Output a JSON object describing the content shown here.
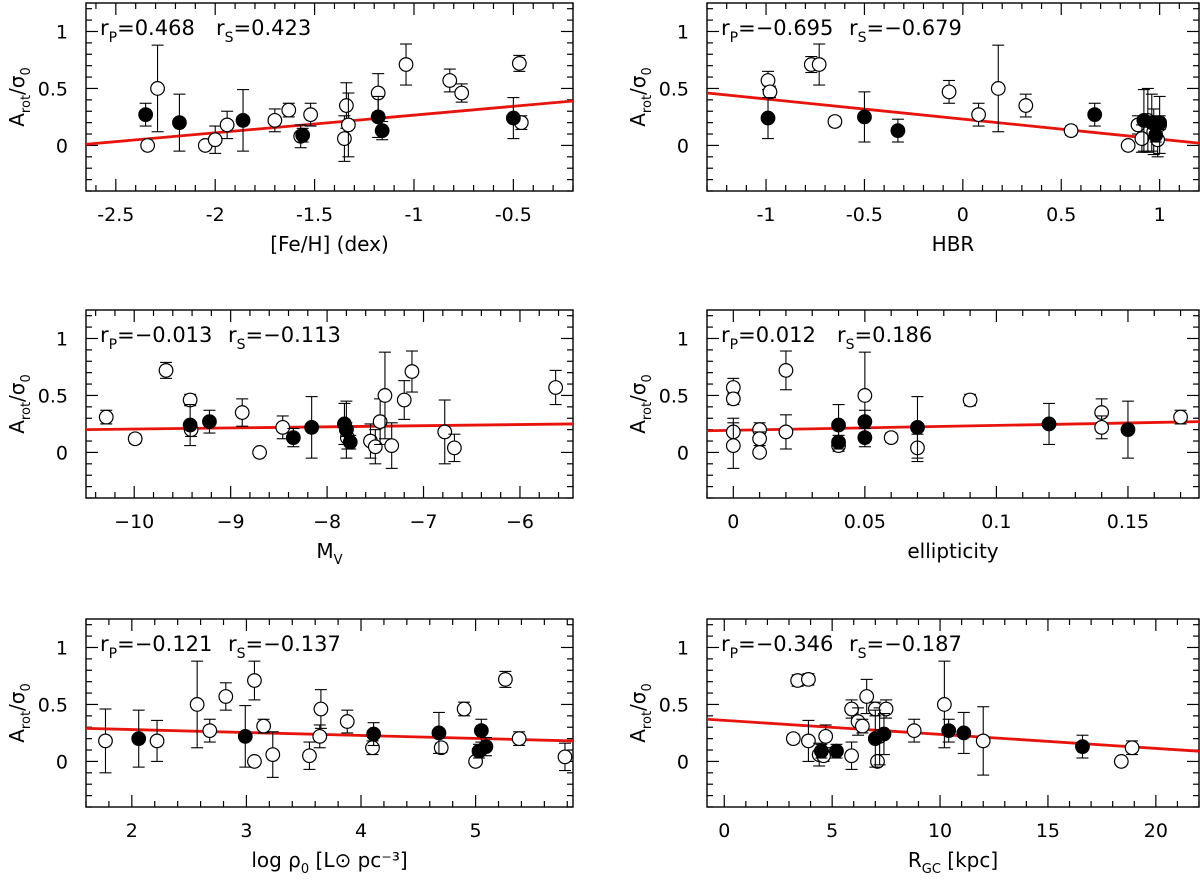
{
  "chart_data": [
    {
      "type": "scatter",
      "xlabel": "[Fe/H] (dex)",
      "ylabel": "A_rot/σ_0",
      "xlim": [
        -2.65,
        -0.2
      ],
      "ylim": [
        -0.4,
        1.25
      ],
      "xticks": [
        -2.5,
        -2,
        -1.5,
        -1,
        -0.5
      ],
      "xtick_labels": [
        "-2.5",
        "-2",
        "-1.5",
        "-1",
        "-0.5"
      ],
      "yticks": [
        0,
        0.5,
        1
      ],
      "ytick_labels": [
        "0",
        "0.5",
        "1"
      ],
      "rp_label": "rP=0.468",
      "rs_label": "rS=0.423",
      "fit_line": {
        "x": [
          -2.65,
          -0.2
        ],
        "y": [
          0.01,
          0.39
        ]
      },
      "open_points": [
        {
          "x": -2.34,
          "y": 0.0,
          "err": 0.02
        },
        {
          "x": -2.29,
          "y": 0.5,
          "err": 0.38
        },
        {
          "x": -2.05,
          "y": 0.0,
          "err": 0.02
        },
        {
          "x": -2.0,
          "y": 0.05,
          "err": 0.12
        },
        {
          "x": -1.94,
          "y": 0.18,
          "err": 0.12
        },
        {
          "x": -1.7,
          "y": 0.22,
          "err": 0.1
        },
        {
          "x": -1.63,
          "y": 0.31,
          "err": 0.06
        },
        {
          "x": -1.57,
          "y": 0.08,
          "err": 0.1
        },
        {
          "x": -1.52,
          "y": 0.27,
          "err": 0.1
        },
        {
          "x": -1.35,
          "y": 0.06,
          "err": 0.2
        },
        {
          "x": -1.34,
          "y": 0.35,
          "err": 0.2
        },
        {
          "x": -1.33,
          "y": 0.18,
          "err": 0.28
        },
        {
          "x": -1.18,
          "y": 0.46,
          "err": 0.17
        },
        {
          "x": -1.04,
          "y": 0.71,
          "err": 0.18
        },
        {
          "x": -0.82,
          "y": 0.57,
          "err": 0.1
        },
        {
          "x": -0.76,
          "y": 0.46,
          "err": 0.08
        },
        {
          "x": -0.47,
          "y": 0.72,
          "err": 0.07
        },
        {
          "x": -0.46,
          "y": 0.2,
          "err": 0.06
        }
      ],
      "filled_points": [
        {
          "x": -2.35,
          "y": 0.27,
          "err": 0.1
        },
        {
          "x": -2.18,
          "y": 0.2,
          "err": 0.25
        },
        {
          "x": -1.86,
          "y": 0.22,
          "err": 0.27
        },
        {
          "x": -1.56,
          "y": 0.09,
          "err": 0.06
        },
        {
          "x": -1.18,
          "y": 0.25,
          "err": 0.18
        },
        {
          "x": -1.16,
          "y": 0.13,
          "err": 0.08
        },
        {
          "x": -0.5,
          "y": 0.24,
          "err": 0.18
        }
      ]
    },
    {
      "type": "scatter",
      "xlabel": "HBR",
      "ylabel": "A_rot/σ_0",
      "xlim": [
        -1.3,
        1.2
      ],
      "ylim": [
        -0.4,
        1.25
      ],
      "xticks": [
        -1,
        -0.5,
        0,
        0.5,
        1
      ],
      "xtick_labels": [
        "-1",
        "-0.5",
        "0",
        "0.5",
        "1"
      ],
      "yticks": [
        0,
        0.5,
        1
      ],
      "ytick_labels": [
        "0",
        "0.5",
        "1"
      ],
      "rp_label": "rP=−0.695",
      "rs_label": "rS=−0.679",
      "fit_line": {
        "x": [
          -1.3,
          1.2
        ],
        "y": [
          0.46,
          0.02
        ]
      },
      "open_points": [
        {
          "x": -0.99,
          "y": 0.57,
          "err": 0.08
        },
        {
          "x": -0.98,
          "y": 0.47,
          "err": 0.05
        },
        {
          "x": -0.77,
          "y": 0.71,
          "err": 0.07
        },
        {
          "x": -0.73,
          "y": 0.71,
          "err": 0.18
        },
        {
          "x": -0.65,
          "y": 0.21,
          "err": 0.04
        },
        {
          "x": -0.07,
          "y": 0.47,
          "err": 0.1
        },
        {
          "x": 0.08,
          "y": 0.27,
          "err": 0.1
        },
        {
          "x": 0.18,
          "y": 0.5,
          "err": 0.38
        },
        {
          "x": 0.32,
          "y": 0.35,
          "err": 0.1
        },
        {
          "x": 0.55,
          "y": 0.13,
          "err": 0.04
        },
        {
          "x": 0.84,
          "y": 0.0,
          "err": 0.02
        },
        {
          "x": 0.89,
          "y": 0.18,
          "err": 0.08
        },
        {
          "x": 0.91,
          "y": 0.06,
          "err": 0.12
        },
        {
          "x": 0.94,
          "y": 0.22,
          "err": 0.28
        },
        {
          "x": 0.97,
          "y": 0.12,
          "err": 0.2
        },
        {
          "x": 0.99,
          "y": 0.05,
          "err": 0.15
        },
        {
          "x": 1.0,
          "y": 0.18,
          "err": 0.25
        }
      ],
      "filled_points": [
        {
          "x": -0.99,
          "y": 0.24,
          "err": 0.18
        },
        {
          "x": -0.5,
          "y": 0.25,
          "err": 0.22
        },
        {
          "x": -0.33,
          "y": 0.13,
          "err": 0.1
        },
        {
          "x": 0.67,
          "y": 0.27,
          "err": 0.1
        },
        {
          "x": 0.92,
          "y": 0.22,
          "err": 0.27
        },
        {
          "x": 0.96,
          "y": 0.2,
          "err": 0.25
        },
        {
          "x": 0.98,
          "y": 0.09,
          "err": 0.06
        },
        {
          "x": 1.0,
          "y": 0.2,
          "err": 0.06
        }
      ]
    },
    {
      "type": "scatter",
      "xlabel": "M_V",
      "ylabel": "A_rot/σ_0",
      "xlim": [
        -10.5,
        -5.45
      ],
      "ylim": [
        -0.4,
        1.25
      ],
      "xticks": [
        -10,
        -9,
        -8,
        -7,
        -6
      ],
      "xtick_labels": [
        "−10",
        "−9",
        "−8",
        "−7",
        "−6"
      ],
      "yticks": [
        0,
        0.5,
        1
      ],
      "ytick_labels": [
        "0",
        "0.5",
        "1"
      ],
      "rp_label": "rP=−0.013",
      "rs_label": "rS=−0.113",
      "fit_line": {
        "x": [
          -10.5,
          -5.45
        ],
        "y": [
          0.2,
          0.25
        ]
      },
      "open_points": [
        {
          "x": -10.29,
          "y": 0.31,
          "err": 0.06
        },
        {
          "x": -9.99,
          "y": 0.12,
          "err": 0.04
        },
        {
          "x": -9.67,
          "y": 0.72,
          "err": 0.07
        },
        {
          "x": -9.42,
          "y": 0.46,
          "err": 0.05
        },
        {
          "x": -9.41,
          "y": 0.2,
          "err": 0.06
        },
        {
          "x": -8.88,
          "y": 0.35,
          "err": 0.12
        },
        {
          "x": -8.7,
          "y": 0.0,
          "err": 0.02
        },
        {
          "x": -8.46,
          "y": 0.22,
          "err": 0.1
        },
        {
          "x": -7.8,
          "y": 0.2,
          "err": 0.25
        },
        {
          "x": -7.79,
          "y": 0.13,
          "err": 0.1
        },
        {
          "x": -7.55,
          "y": 0.1,
          "err": 0.15
        },
        {
          "x": -7.5,
          "y": 0.05,
          "err": 0.15
        },
        {
          "x": -7.45,
          "y": 0.27,
          "err": 0.2
        },
        {
          "x": -7.4,
          "y": 0.5,
          "err": 0.38
        },
        {
          "x": -7.33,
          "y": 0.06,
          "err": 0.2
        },
        {
          "x": -7.2,
          "y": 0.46,
          "err": 0.17
        },
        {
          "x": -7.12,
          "y": 0.71,
          "err": 0.18
        },
        {
          "x": -6.78,
          "y": 0.18,
          "err": 0.28
        },
        {
          "x": -6.68,
          "y": 0.04,
          "err": 0.12
        },
        {
          "x": -5.63,
          "y": 0.57,
          "err": 0.15
        }
      ],
      "filled_points": [
        {
          "x": -9.42,
          "y": 0.24,
          "err": 0.18
        },
        {
          "x": -9.22,
          "y": 0.27,
          "err": 0.1
        },
        {
          "x": -8.35,
          "y": 0.13,
          "err": 0.08
        },
        {
          "x": -8.16,
          "y": 0.22,
          "err": 0.27
        },
        {
          "x": -7.82,
          "y": 0.25,
          "err": 0.18
        },
        {
          "x": -7.8,
          "y": 0.2,
          "err": 0.06
        },
        {
          "x": -7.76,
          "y": 0.09,
          "err": 0.06
        }
      ]
    },
    {
      "type": "scatter",
      "xlabel": "ellipticity",
      "ylabel": "A_rot/σ_0",
      "xlim": [
        -0.01,
        0.177
      ],
      "ylim": [
        -0.4,
        1.25
      ],
      "xticks": [
        0,
        0.05,
        0.1,
        0.15
      ],
      "xtick_labels": [
        "0",
        "0.05",
        "0.1",
        "0.15"
      ],
      "yticks": [
        0,
        0.5,
        1
      ],
      "ytick_labels": [
        "0",
        "0.5",
        "1"
      ],
      "rp_label": "rP=0.012",
      "rs_label": "rS=0.186",
      "fit_line": {
        "x": [
          -0.01,
          0.177
        ],
        "y": [
          0.19,
          0.27
        ]
      },
      "open_points": [
        {
          "x": 0.0,
          "y": 0.57,
          "err": 0.08
        },
        {
          "x": 0.0,
          "y": 0.47,
          "err": 0.05
        },
        {
          "x": 0.0,
          "y": 0.18,
          "err": 0.12
        },
        {
          "x": 0.0,
          "y": 0.06,
          "err": 0.2
        },
        {
          "x": 0.01,
          "y": 0.2,
          "err": 0.06
        },
        {
          "x": 0.01,
          "y": 0.12,
          "err": 0.06
        },
        {
          "x": 0.01,
          "y": 0.0,
          "err": 0.02
        },
        {
          "x": 0.02,
          "y": 0.72,
          "err": 0.17
        },
        {
          "x": 0.02,
          "y": 0.18,
          "err": 0.15
        },
        {
          "x": 0.04,
          "y": 0.06,
          "err": 0.05
        },
        {
          "x": 0.05,
          "y": 0.5,
          "err": 0.38
        },
        {
          "x": 0.06,
          "y": 0.13,
          "err": 0.04
        },
        {
          "x": 0.07,
          "y": 0.04,
          "err": 0.12
        },
        {
          "x": 0.09,
          "y": 0.46,
          "err": 0.05
        },
        {
          "x": 0.14,
          "y": 0.35,
          "err": 0.12
        },
        {
          "x": 0.14,
          "y": 0.22,
          "err": 0.1
        },
        {
          "x": 0.17,
          "y": 0.31,
          "err": 0.06
        }
      ],
      "filled_points": [
        {
          "x": 0.04,
          "y": 0.24,
          "err": 0.18
        },
        {
          "x": 0.04,
          "y": 0.09,
          "err": 0.06
        },
        {
          "x": 0.05,
          "y": 0.27,
          "err": 0.1
        },
        {
          "x": 0.05,
          "y": 0.13,
          "err": 0.08
        },
        {
          "x": 0.07,
          "y": 0.22,
          "err": 0.27
        },
        {
          "x": 0.12,
          "y": 0.25,
          "err": 0.18
        },
        {
          "x": 0.15,
          "y": 0.2,
          "err": 0.25
        }
      ]
    },
    {
      "type": "scatter",
      "xlabel": "log ρ0 [L⊙ pc⁻³]",
      "ylabel": "A_rot/σ_0",
      "xlim": [
        1.6,
        5.85
      ],
      "ylim": [
        -0.4,
        1.25
      ],
      "xticks": [
        2,
        3,
        4,
        5
      ],
      "xtick_labels": [
        "2",
        "3",
        "4",
        "5"
      ],
      "yticks": [
        0,
        0.5,
        1
      ],
      "ytick_labels": [
        "0",
        "0.5",
        "1"
      ],
      "rp_label": "rP=−0.121",
      "rs_label": "rS=−0.137",
      "fit_line": {
        "x": [
          1.6,
          5.85
        ],
        "y": [
          0.29,
          0.18
        ]
      },
      "open_points": [
        {
          "x": 1.77,
          "y": 0.18,
          "err": 0.28
        },
        {
          "x": 2.22,
          "y": 0.18,
          "err": 0.18
        },
        {
          "x": 2.57,
          "y": 0.5,
          "err": 0.38
        },
        {
          "x": 2.68,
          "y": 0.27,
          "err": 0.1
        },
        {
          "x": 2.82,
          "y": 0.57,
          "err": 0.12
        },
        {
          "x": 3.07,
          "y": 0.71,
          "err": 0.17
        },
        {
          "x": 3.07,
          "y": 0.0,
          "err": 0.02
        },
        {
          "x": 3.15,
          "y": 0.31,
          "err": 0.06
        },
        {
          "x": 3.23,
          "y": 0.06,
          "err": 0.2
        },
        {
          "x": 3.55,
          "y": 0.05,
          "err": 0.12
        },
        {
          "x": 3.65,
          "y": 0.46,
          "err": 0.17
        },
        {
          "x": 3.64,
          "y": 0.22,
          "err": 0.1
        },
        {
          "x": 3.88,
          "y": 0.35,
          "err": 0.1
        },
        {
          "x": 4.1,
          "y": 0.12,
          "err": 0.06
        },
        {
          "x": 4.7,
          "y": 0.12,
          "err": 0.04
        },
        {
          "x": 4.9,
          "y": 0.46,
          "err": 0.06
        },
        {
          "x": 5.0,
          "y": 0.0,
          "err": 0.02
        },
        {
          "x": 5.26,
          "y": 0.72,
          "err": 0.07
        },
        {
          "x": 5.38,
          "y": 0.2,
          "err": 0.06
        },
        {
          "x": 5.78,
          "y": 0.04,
          "err": 0.12
        }
      ],
      "filled_points": [
        {
          "x": 2.06,
          "y": 0.2,
          "err": 0.25
        },
        {
          "x": 2.99,
          "y": 0.22,
          "err": 0.27
        },
        {
          "x": 4.11,
          "y": 0.24,
          "err": 0.1
        },
        {
          "x": 4.68,
          "y": 0.25,
          "err": 0.18
        },
        {
          "x": 5.05,
          "y": 0.27,
          "err": 0.1
        },
        {
          "x": 5.03,
          "y": 0.09,
          "err": 0.06
        },
        {
          "x": 5.09,
          "y": 0.13,
          "err": 0.08
        }
      ]
    },
    {
      "type": "scatter",
      "xlabel": "R_GC [kpc]",
      "ylabel": "A_rot/σ_0",
      "xlim": [
        -0.8,
        22
      ],
      "ylim": [
        -0.4,
        1.25
      ],
      "xticks": [
        0,
        5,
        10,
        15,
        20
      ],
      "xtick_labels": [
        "0",
        "5",
        "10",
        "15",
        "20"
      ],
      "yticks": [
        0,
        0.5,
        1
      ],
      "ytick_labels": [
        "0",
        "0.5",
        "1"
      ],
      "rp_label": "rP=−0.346",
      "rs_label": "rS=−0.187",
      "fit_line": {
        "x": [
          -0.8,
          22
        ],
        "y": [
          0.37,
          0.09
        ]
      },
      "open_points": [
        {
          "x": 3.2,
          "y": 0.2,
          "err": 0.04
        },
        {
          "x": 3.4,
          "y": 0.71,
          "err": 0.05
        },
        {
          "x": 3.9,
          "y": 0.72,
          "err": 0.05
        },
        {
          "x": 3.9,
          "y": 0.18,
          "err": 0.18
        },
        {
          "x": 4.4,
          "y": 0.06,
          "err": 0.1
        },
        {
          "x": 4.6,
          "y": 0.05,
          "err": 0.05
        },
        {
          "x": 4.7,
          "y": 0.22,
          "err": 0.1
        },
        {
          "x": 5.9,
          "y": 0.46,
          "err": 0.08
        },
        {
          "x": 5.9,
          "y": 0.05,
          "err": 0.12
        },
        {
          "x": 6.2,
          "y": 0.35,
          "err": 0.12
        },
        {
          "x": 6.4,
          "y": 0.31,
          "err": 0.06
        },
        {
          "x": 6.6,
          "y": 0.57,
          "err": 0.15
        },
        {
          "x": 7.0,
          "y": 0.46,
          "err": 0.06
        },
        {
          "x": 7.1,
          "y": 0.0,
          "err": 0.02
        },
        {
          "x": 7.2,
          "y": 0.22,
          "err": 0.25
        },
        {
          "x": 7.5,
          "y": 0.46,
          "err": 0.08
        },
        {
          "x": 8.8,
          "y": 0.27,
          "err": 0.1
        },
        {
          "x": 10.2,
          "y": 0.5,
          "err": 0.38
        },
        {
          "x": 12.0,
          "y": 0.18,
          "err": 0.3
        },
        {
          "x": 18.4,
          "y": 0.0,
          "err": 0.02
        },
        {
          "x": 18.9,
          "y": 0.12,
          "err": 0.06
        }
      ],
      "filled_points": [
        {
          "x": 4.5,
          "y": 0.09,
          "err": 0.06
        },
        {
          "x": 5.2,
          "y": 0.09,
          "err": 0.06
        },
        {
          "x": 7.0,
          "y": 0.2,
          "err": 0.25
        },
        {
          "x": 7.4,
          "y": 0.24,
          "err": 0.18
        },
        {
          "x": 10.4,
          "y": 0.27,
          "err": 0.1
        },
        {
          "x": 11.1,
          "y": 0.25,
          "err": 0.18
        },
        {
          "x": 16.6,
          "y": 0.13,
          "err": 0.1
        }
      ]
    }
  ]
}
